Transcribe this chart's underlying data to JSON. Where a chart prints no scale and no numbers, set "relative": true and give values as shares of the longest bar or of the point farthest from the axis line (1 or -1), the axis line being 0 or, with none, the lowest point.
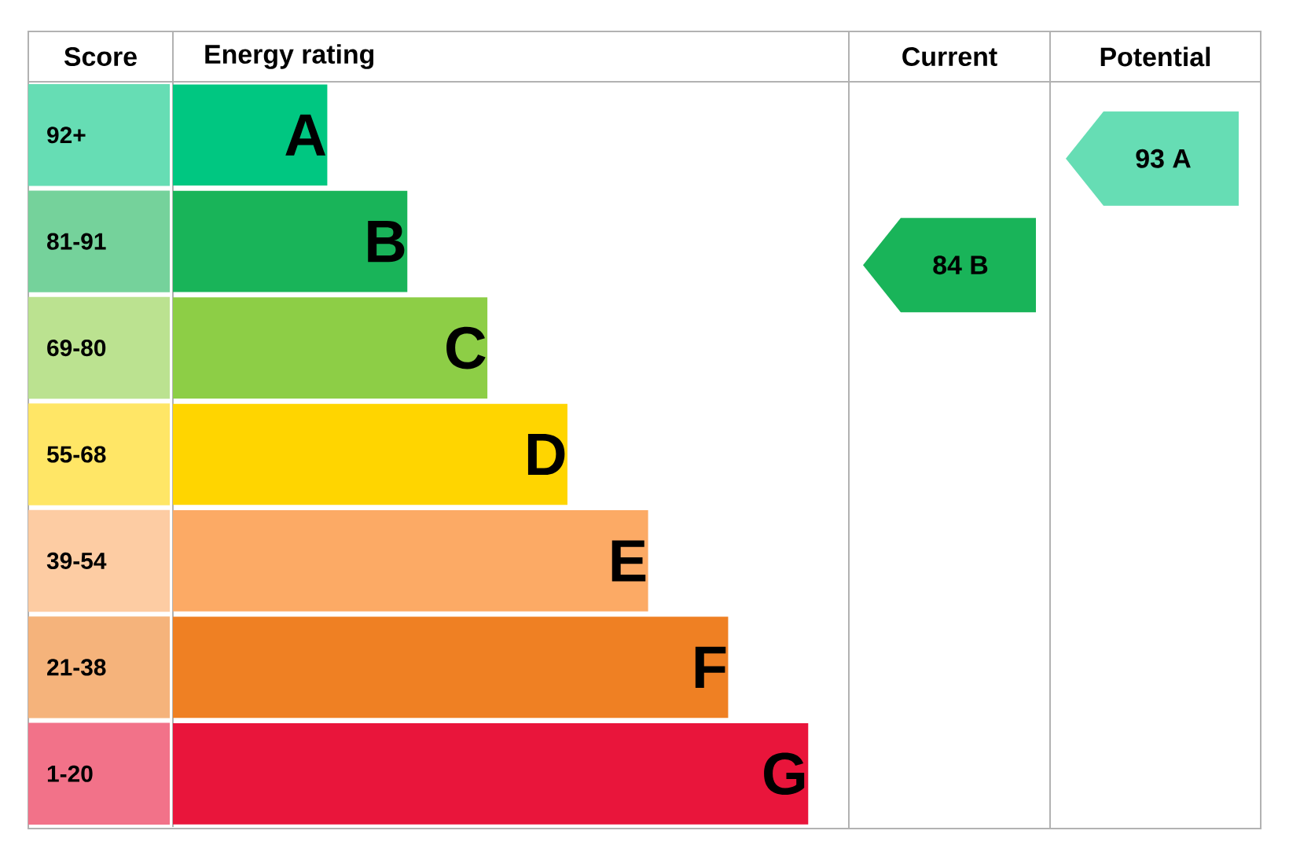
{
  "chart_data": {
    "type": "bar",
    "orientation": "horizontal",
    "relative": true,
    "title": "Energy rating",
    "categories": [
      "A",
      "B",
      "C",
      "D",
      "E",
      "F",
      "G"
    ],
    "values": [
      0.243,
      0.369,
      0.495,
      0.621,
      0.748,
      0.874,
      1
    ],
    "colors": [
      "#00c781",
      "#19b459",
      "#8dce46",
      "#ffd500",
      "#fcaa65",
      "#ef8023",
      "#e9153b"
    ],
    "annotations": [
      "Score",
      "Current",
      "Potential",
      "92+",
      "81-91",
      "69-80",
      "55-68",
      "39-54",
      "21-38",
      "1-20",
      "84 B",
      "93 A"
    ]
  }
}
